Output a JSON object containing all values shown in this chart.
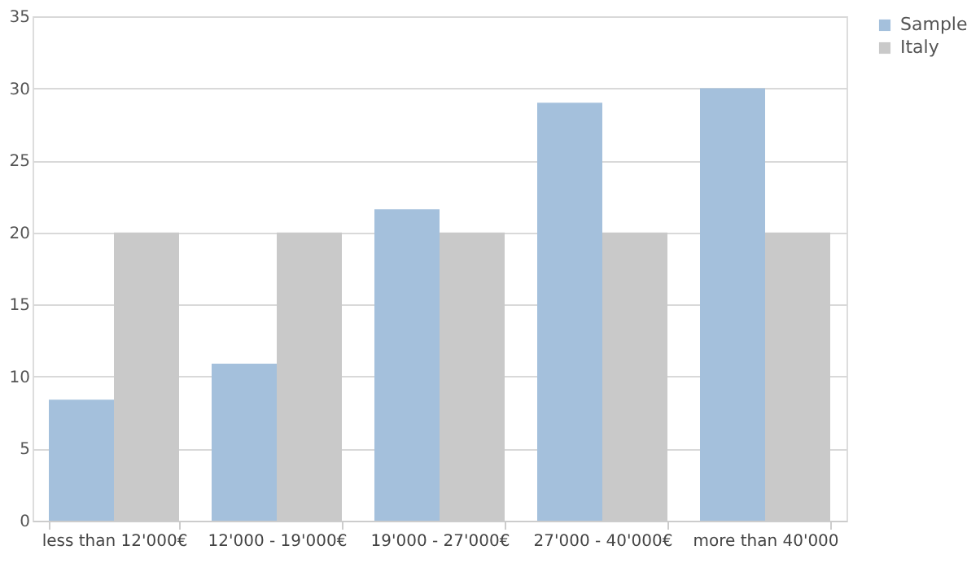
{
  "chart_data": {
    "type": "bar",
    "categories": [
      "less than 12'000€",
      "12'000 - 19'000€",
      "19'000 - 27'000€",
      "27'000 - 40'000€",
      "more than 40'000"
    ],
    "series": [
      {
        "name": "Sample",
        "color": "#a4c0dc",
        "values": [
          8.4,
          10.9,
          21.6,
          29.0,
          30.0
        ]
      },
      {
        "name": "Italy",
        "color": "#c9c9c9",
        "values": [
          20,
          20,
          20,
          20,
          20
        ]
      }
    ],
    "ylim": [
      0,
      35
    ],
    "yticks": [
      0,
      5,
      10,
      15,
      20,
      25,
      30,
      35
    ],
    "grid": "y",
    "legend": "right"
  }
}
